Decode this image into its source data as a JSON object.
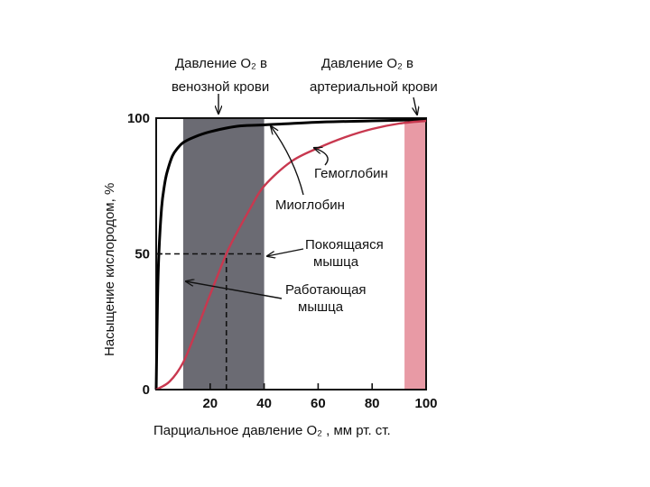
{
  "chart_data": {
    "type": "line",
    "xlabel": "Парциальное давление О₂ , мм рт. ст.",
    "ylabel": "Насыщение кислородом, %",
    "xlim": [
      0,
      100
    ],
    "ylim": [
      0,
      100
    ],
    "x_ticks": [
      "20",
      "40",
      "60",
      "80",
      "100"
    ],
    "y_ticks": [
      "0",
      "50",
      "100"
    ],
    "bands": [
      {
        "name": "venous",
        "x_range": [
          10,
          40
        ],
        "color": "#6b6b73"
      },
      {
        "name": "arterial",
        "x_range": [
          92,
          100
        ],
        "color": "#e89aa5"
      }
    ],
    "series": [
      {
        "name": "Миоглобин",
        "color": "#000000",
        "x": [
          0,
          0.5,
          1,
          2,
          3,
          4,
          6,
          8,
          10,
          14,
          20,
          30,
          40,
          60,
          80,
          100
        ],
        "y": [
          0,
          33,
          50,
          67,
          75,
          80,
          86,
          89,
          91,
          93,
          95,
          97,
          97.5,
          98.5,
          99,
          99.5
        ]
      },
      {
        "name": "Гемоглобин",
        "color": "#c8384f",
        "x": [
          0,
          5,
          10,
          15,
          20,
          26,
          30,
          35,
          40,
          50,
          60,
          70,
          80,
          90,
          100
        ],
        "y": [
          0,
          3,
          10,
          22,
          35,
          50,
          58,
          67,
          75,
          84,
          89,
          93,
          96,
          98,
          99
        ]
      }
    ],
    "reference_lines": [
      {
        "type": "horizontal",
        "y": 50,
        "x_range": [
          0,
          40
        ],
        "style": "dashed"
      },
      {
        "type": "vertical",
        "x": 26,
        "y_range": [
          0,
          50
        ],
        "style": "dashed"
      }
    ],
    "annotations": {
      "venous_line1": "Давление О₂ в",
      "venous_line2": "венозной крови",
      "arterial_line1": "Давление О₂ в",
      "arterial_line2": "артериальной крови",
      "hemoglobin": "Гемоглобин",
      "myoglobin": "Миоглобин",
      "resting_line1": "Покоящаяся",
      "resting_line2": "мышца",
      "working_line1": "Работающая",
      "working_line2": "мышца"
    }
  }
}
